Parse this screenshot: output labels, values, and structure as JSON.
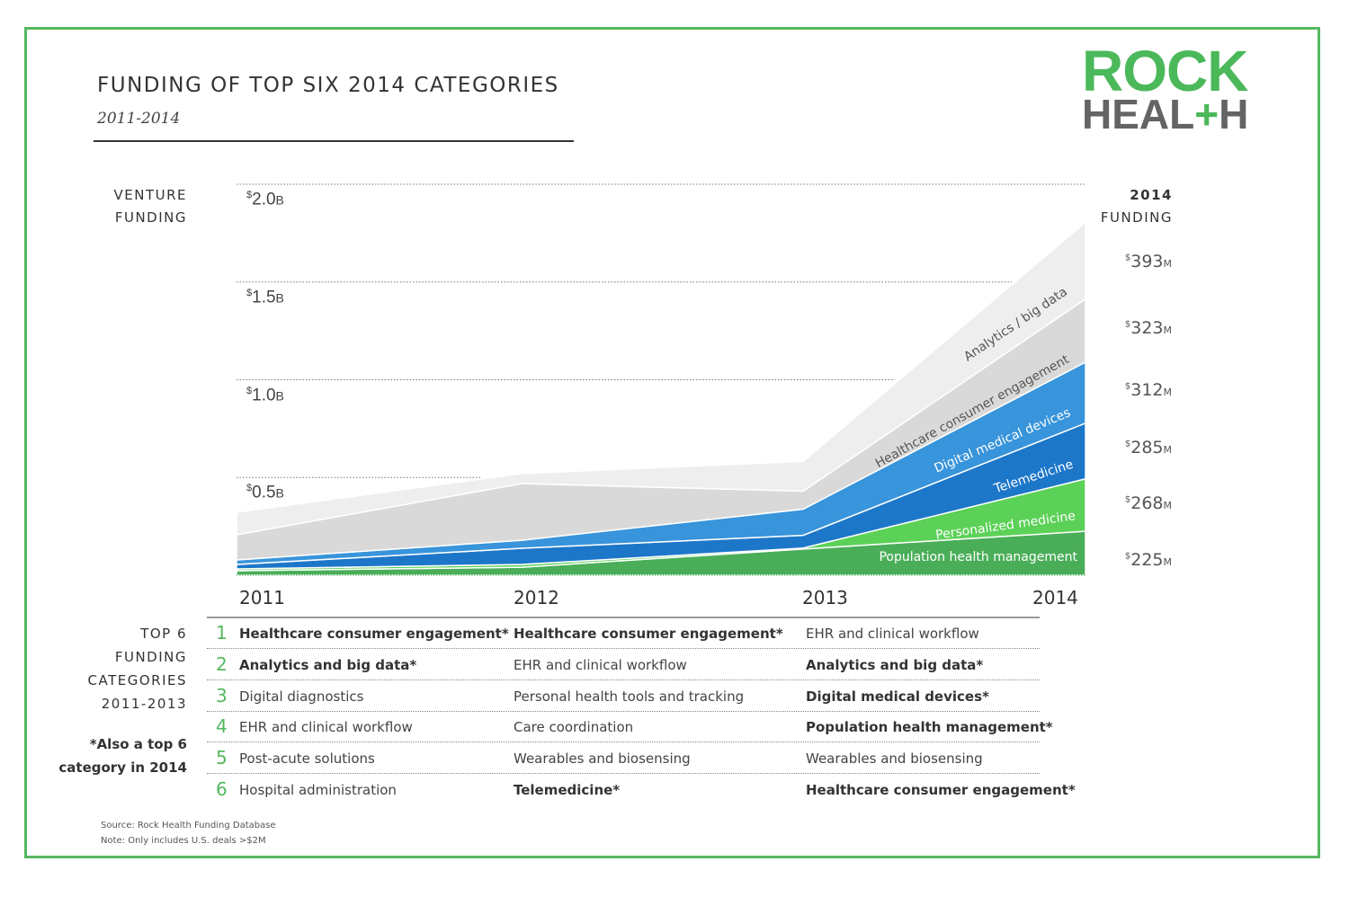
{
  "header": {
    "title": "FUNDING OF TOP SIX 2014 CATEGORIES",
    "subtitle": "2011-2014"
  },
  "logo": {
    "line1": "ROCK",
    "line2_a": "HEAL",
    "line2_plus": "+",
    "line2_b": "H",
    "text": "ROCK HEALTH"
  },
  "labels": {
    "venture_funding": [
      "VENTURE",
      "FUNDING"
    ],
    "funding_2014": [
      "2014",
      "FUNDING"
    ],
    "top6": [
      "TOP 6",
      "FUNDING",
      "CATEGORIES",
      "2011-2013"
    ],
    "also_top6": [
      "*Also a top 6",
      "category in 2014"
    ]
  },
  "chart_data": {
    "type": "area",
    "stacked": true,
    "x": [
      "2011",
      "2012",
      "2013",
      "2014"
    ],
    "ylabel": "VENTURE FUNDING",
    "ylim": [
      0,
      2000
    ],
    "y_unit": "$M",
    "y_ticks": [
      {
        "value": 500,
        "label_num": "0.5",
        "label_unit": "B"
      },
      {
        "value": 1000,
        "label_num": "1.0",
        "label_unit": "B"
      },
      {
        "value": 1500,
        "label_num": "1.5",
        "label_unit": "B"
      },
      {
        "value": 2000,
        "label_num": "2.0",
        "label_unit": "B"
      }
    ],
    "grid": "dotted horizontal",
    "series": [
      {
        "name": "Population health management",
        "color": "#4aae58",
        "text_color": "#ffffff",
        "values": [
          23,
          41,
          134,
          225
        ],
        "label_2014": "225"
      },
      {
        "name": "Personalized medicine",
        "color": "#5cd157",
        "text_color": "#ffffff",
        "values": [
          9,
          14,
          5,
          268
        ],
        "label_2014": "268"
      },
      {
        "name": "Telemedicine",
        "color": "#1d77c9",
        "text_color": "#ffffff",
        "values": [
          23,
          83,
          65,
          285
        ],
        "label_2014": "285"
      },
      {
        "name": "Digital medical devices",
        "color": "#3894db",
        "text_color": "#ffffff",
        "values": [
          23,
          41,
          134,
          312
        ],
        "label_2014": "312"
      },
      {
        "name": "Healthcare consumer engagement",
        "color": "#d9d9d9",
        "text_color": "#555555",
        "values": [
          129,
          290,
          92,
          323
        ],
        "label_2014": "323"
      },
      {
        "name": "Analytics / big data",
        "color": "#eeeeee",
        "text_color": "#555555",
        "values": [
          115,
          51,
          152,
          393
        ],
        "label_2014": "393"
      }
    ],
    "value_prefix": "$",
    "value_suffix": "M"
  },
  "table": {
    "rows": [
      {
        "rank": "1",
        "cells": [
          {
            "text": "Healthcare consumer engagement*",
            "bold": true
          },
          {
            "text": "Healthcare consumer engagement*",
            "bold": true
          },
          {
            "text": "EHR and clinical workflow",
            "bold": false
          }
        ]
      },
      {
        "rank": "2",
        "cells": [
          {
            "text": "Analytics and big data*",
            "bold": true
          },
          {
            "text": "EHR and clinical workflow",
            "bold": false
          },
          {
            "text": "Analytics and big data*",
            "bold": true
          }
        ]
      },
      {
        "rank": "3",
        "cells": [
          {
            "text": "Digital diagnostics",
            "bold": false
          },
          {
            "text": "Personal health tools and tracking",
            "bold": false
          },
          {
            "text": "Digital medical devices*",
            "bold": true
          }
        ]
      },
      {
        "rank": "4",
        "cells": [
          {
            "text": "EHR and clinical workflow",
            "bold": false
          },
          {
            "text": "Care coordination",
            "bold": false
          },
          {
            "text": "Population health management*",
            "bold": true
          }
        ]
      },
      {
        "rank": "5",
        "cells": [
          {
            "text": "Post-acute solutions",
            "bold": false
          },
          {
            "text": "Wearables and biosensing",
            "bold": false
          },
          {
            "text": "Wearables and biosensing",
            "bold": false
          }
        ]
      },
      {
        "rank": "6",
        "cells": [
          {
            "text": "Hospital administration",
            "bold": false
          },
          {
            "text": "Telemedicine*",
            "bold": true
          },
          {
            "text": "Healthcare consumer engagement*",
            "bold": true
          }
        ]
      }
    ]
  },
  "footer": {
    "source": "Source: Rock Health Funding Database",
    "note": "Note: Only includes U.S. deals >$2M"
  },
  "colors": {
    "brand_green": "#4bb85a",
    "brand_gray": "#636466",
    "frame": "#55b85f"
  }
}
